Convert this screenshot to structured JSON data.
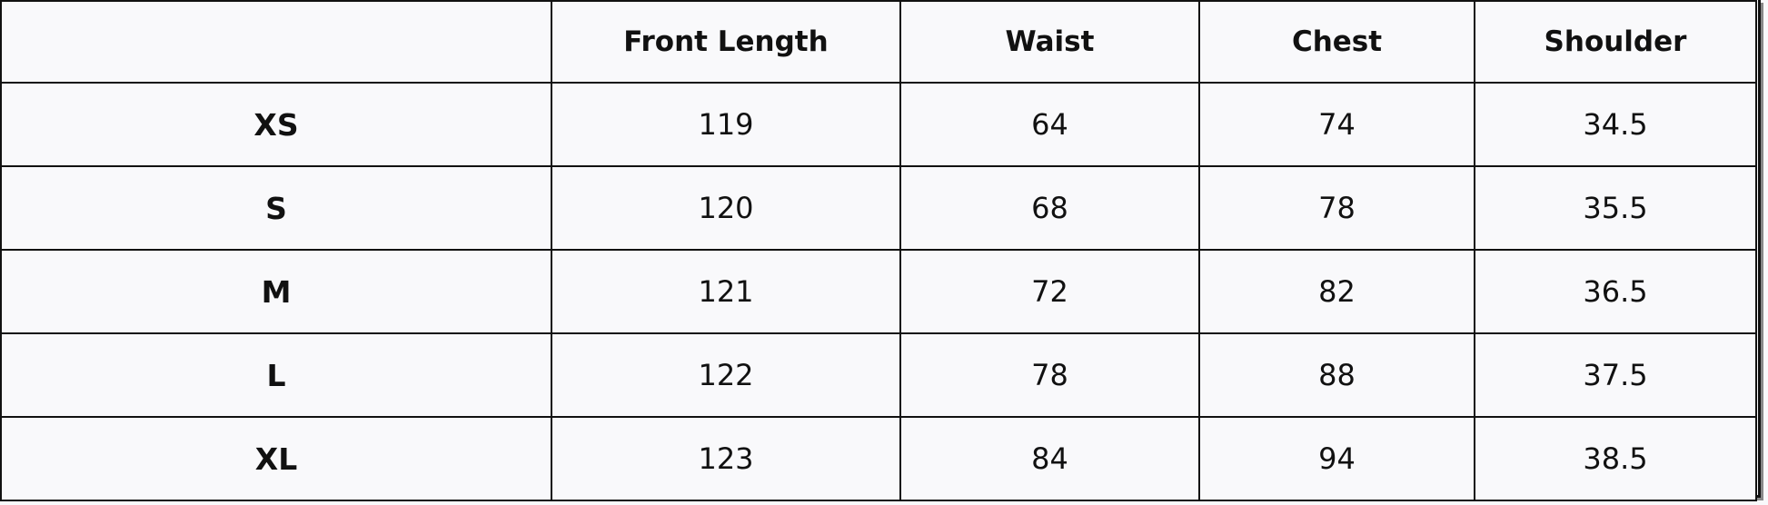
{
  "table": {
    "headers": [
      "",
      "Front Length",
      "Waist",
      "Chest",
      "Shoulder"
    ],
    "rows": [
      [
        "XS",
        "119",
        "64",
        "74",
        "34.5"
      ],
      [
        "S",
        "120",
        "68",
        "78",
        "35.5"
      ],
      [
        "M",
        "121",
        "72",
        "82",
        "36.5"
      ],
      [
        "L",
        "122",
        "78",
        "88",
        "37.5"
      ],
      [
        "XL",
        "123",
        "84",
        "94",
        "38.5"
      ]
    ]
  }
}
